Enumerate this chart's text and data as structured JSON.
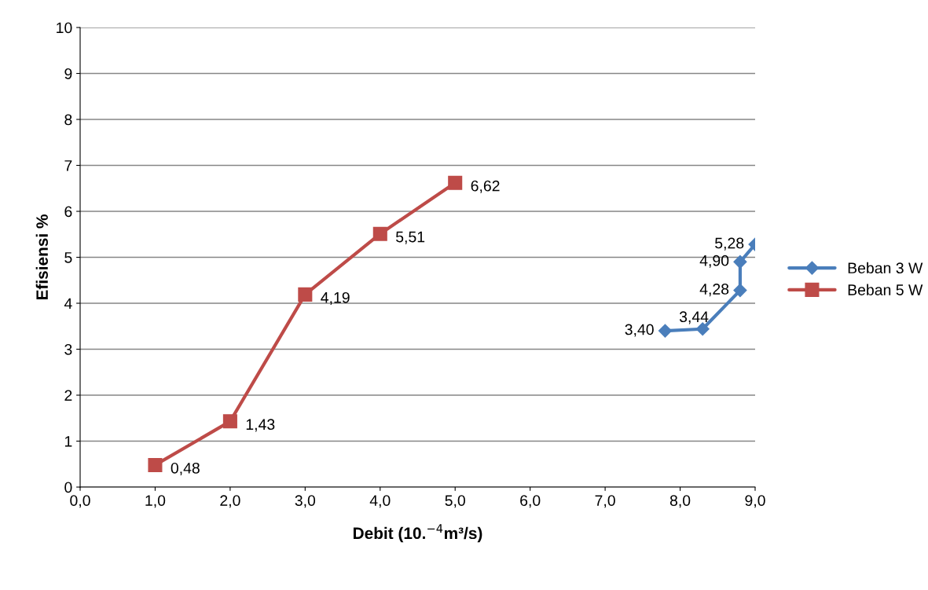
{
  "chart_data": {
    "type": "line",
    "xlabel": "Debit (10.$^{−4}$m³/s)",
    "ylabel": "Efisiensi %",
    "xlim": [
      0,
      9
    ],
    "xticks": [
      {
        "value": 0,
        "label": "0,0"
      },
      {
        "value": 1,
        "label": "1,0"
      },
      {
        "value": 2,
        "label": "2,0"
      },
      {
        "value": 3,
        "label": "3,0"
      },
      {
        "value": 4,
        "label": "4,0"
      },
      {
        "value": 5,
        "label": "5,0"
      },
      {
        "value": 6,
        "label": "6,0"
      },
      {
        "value": 7,
        "label": "7,0"
      },
      {
        "value": 8,
        "label": "8,0"
      },
      {
        "value": 9,
        "label": "9,0"
      }
    ],
    "ylim": [
      0,
      10
    ],
    "yticks": [
      0,
      1,
      2,
      3,
      4,
      5,
      6,
      7,
      8,
      9,
      10
    ],
    "grid": "y",
    "legend": "right",
    "series": [
      {
        "name": "Beban 3 W",
        "color": "#4a7ebb",
        "marker": "diamond",
        "x": [
          7.8,
          8.3,
          8.8,
          8.8,
          9.0
        ],
        "values": [
          3.4,
          3.44,
          4.28,
          4.9,
          5.28
        ],
        "value_labels": [
          "3,40",
          "3,44",
          "4,28",
          "4,90",
          "5,28"
        ]
      },
      {
        "name": "Beban 5 W",
        "color": "#be4b48",
        "marker": "square",
        "x": [
          1,
          2,
          3,
          4,
          5
        ],
        "values": [
          0.48,
          1.43,
          4.19,
          5.51,
          6.62
        ],
        "value_labels": [
          "0,48",
          "1,43",
          "4,19",
          "5,51",
          "6,62"
        ]
      }
    ]
  }
}
